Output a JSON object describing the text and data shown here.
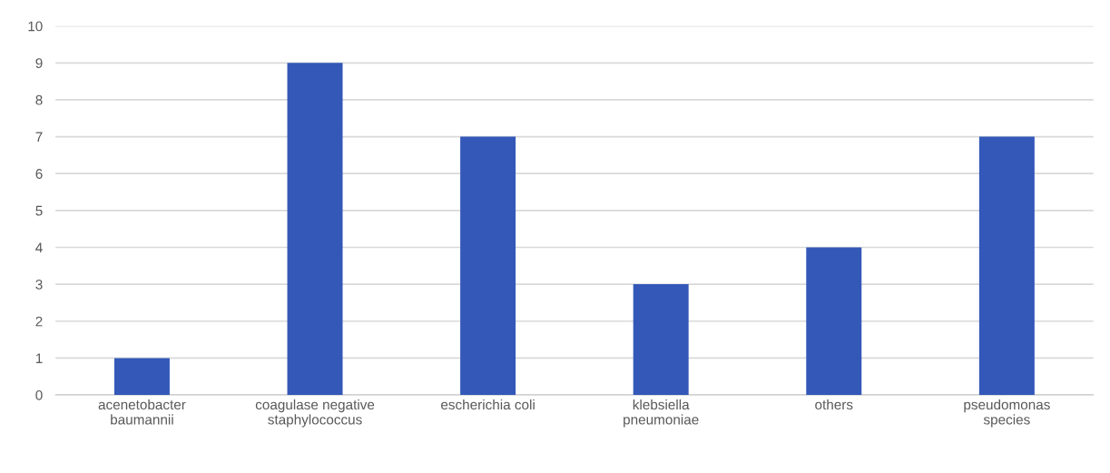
{
  "chart_data": {
    "type": "bar",
    "categories": [
      "acenetobacter\nbaumannii",
      "coagulase negative\nstaphylococcus",
      "escherichia coli",
      "klebsiella\npneumoniae",
      "others",
      "pseudomonas\nspecies"
    ],
    "values": [
      1,
      9,
      7,
      3,
      4,
      7
    ],
    "color": "#3358b8",
    "ylim": [
      0,
      10
    ],
    "yticks": [
      0,
      1,
      2,
      3,
      4,
      5,
      6,
      7,
      8,
      9,
      10
    ],
    "grid": "y",
    "legend": false
  }
}
